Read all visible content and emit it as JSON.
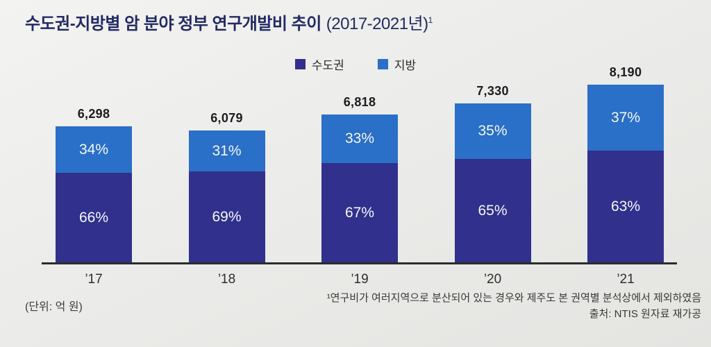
{
  "title": {
    "main": "수도권-지방별 암 분야 정부 연구개발비 추이",
    "range": "(2017-2021년)",
    "footnote_marker": "1"
  },
  "legend": {
    "items": [
      {
        "label": "수도권",
        "color": "#31308c"
      },
      {
        "label": "지방",
        "color": "#2a6fc8"
      }
    ]
  },
  "unit_note": "(단위: 억 원)",
  "footnote": "¹연구비가 여러지역으로 분산되어 있는 경우와 제주도 본 권역별 분석상에서 제외하였음",
  "source": "출처: NTIS 원자료 재가공",
  "chart_data": {
    "type": "bar",
    "stacked": true,
    "title": "수도권-지방별 암 분야 정부 연구개발비 추이 (2017-2021년)",
    "unit": "억 원",
    "categories": [
      "’17",
      "’18",
      "’19",
      "’20",
      "’21"
    ],
    "totals": [
      6298,
      6079,
      6818,
      7330,
      8190
    ],
    "total_labels": [
      "6,298",
      "6,079",
      "6,818",
      "7,330",
      "8,190"
    ],
    "series": [
      {
        "name": "수도권",
        "position": "bottom",
        "color": "#31308c",
        "percent": [
          66,
          69,
          67,
          65,
          63
        ],
        "percent_labels": [
          "66%",
          "69%",
          "67%",
          "65%",
          "63%"
        ]
      },
      {
        "name": "지방",
        "position": "top",
        "color": "#2a6fc8",
        "percent": [
          34,
          31,
          33,
          35,
          37
        ],
        "percent_labels": [
          "34%",
          "31%",
          "33%",
          "35%",
          "37%"
        ]
      }
    ],
    "legend_position": "top",
    "grid": false,
    "ylim": [
      0,
      8500
    ]
  }
}
